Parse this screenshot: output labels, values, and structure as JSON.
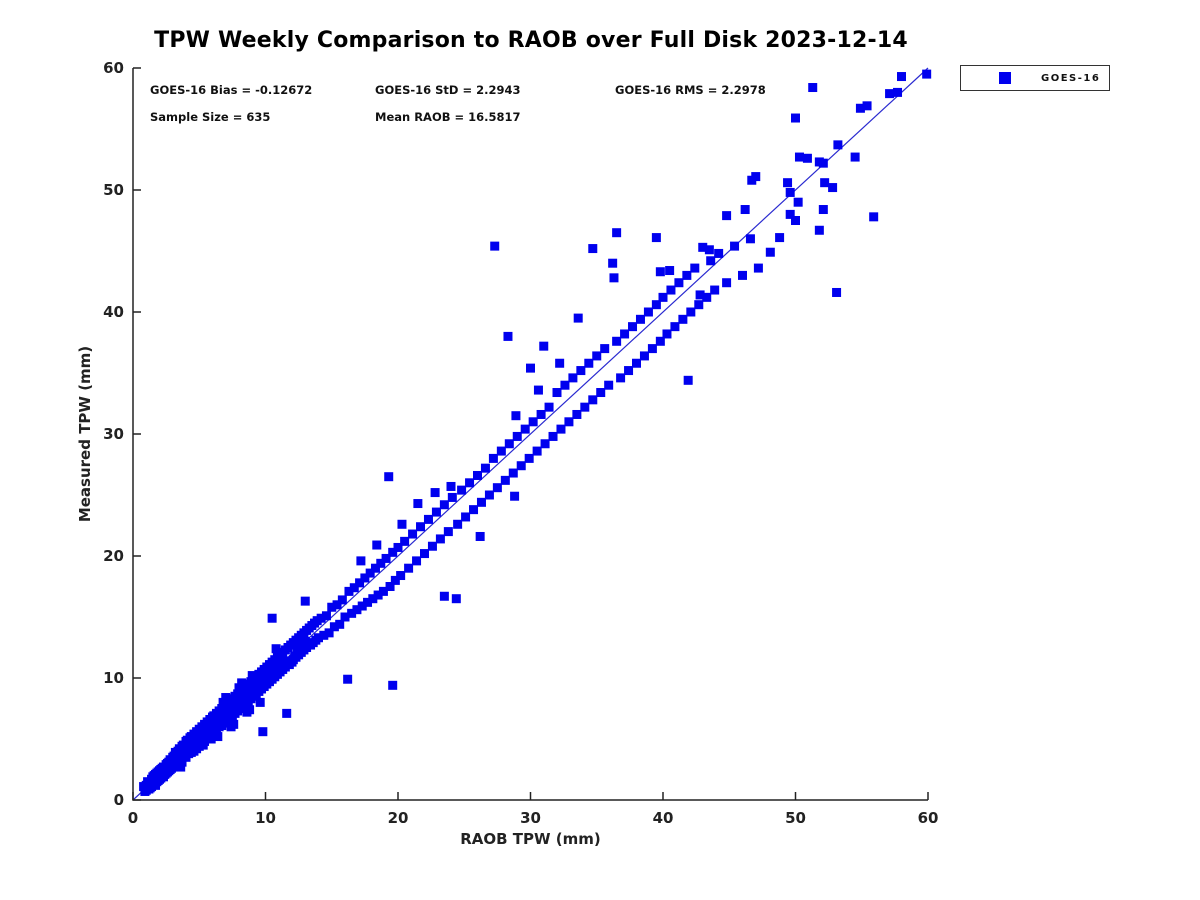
{
  "chart_data": {
    "type": "scatter",
    "title": "TPW Weekly Comparison to RAOB over Full Disk 2023-12-14",
    "xlabel": "RAOB TPW (mm)",
    "ylabel": "Measured TPW (mm)",
    "xlim": [
      0,
      60
    ],
    "ylim": [
      0,
      60
    ],
    "xticks": [
      0,
      10,
      20,
      30,
      40,
      50,
      60
    ],
    "yticks": [
      0,
      10,
      20,
      30,
      40,
      50,
      60
    ],
    "grid": false,
    "legend_position": "outside-top-right",
    "stats": {
      "bias_label": "GOES-16 Bias = -0.12672",
      "std_label": "GOES-16 StD = 2.2943",
      "rms_label": "GOES-16 RMS = 2.2978",
      "sample_label": "Sample Size = 635",
      "mean_raob_label": "Mean RAOB = 16.5817"
    },
    "legend": [
      {
        "label": "GOES-16",
        "marker_color": "#0000ee"
      }
    ],
    "marker": {
      "shape": "square",
      "size": 9,
      "color": "#0000ee"
    },
    "reference_line": {
      "x1": 0,
      "y1": 0,
      "x2": 60,
      "y2": 60,
      "color": "#2a2ad0"
    },
    "points": [
      [
        0.8,
        1.1
      ],
      [
        0.9,
        0.7
      ],
      [
        1.0,
        1.2
      ],
      [
        1.0,
        0.8
      ],
      [
        1.1,
        1.5
      ],
      [
        1.2,
        0.9
      ],
      [
        1.2,
        1.4
      ],
      [
        1.3,
        1.0
      ],
      [
        1.4,
        1.7
      ],
      [
        1.4,
        1.1
      ],
      [
        1.5,
        1.9
      ],
      [
        1.5,
        1.3
      ],
      [
        1.6,
        1.4
      ],
      [
        1.7,
        2.1
      ],
      [
        1.7,
        1.2
      ],
      [
        1.8,
        2.2
      ],
      [
        1.8,
        1.5
      ],
      [
        1.9,
        1.6
      ],
      [
        2.0,
        2.4
      ],
      [
        2.0,
        1.7
      ],
      [
        2.1,
        2.5
      ],
      [
        2.1,
        1.8
      ],
      [
        2.2,
        2.0
      ],
      [
        2.3,
        2.7
      ],
      [
        2.3,
        1.9
      ],
      [
        2.4,
        2.1
      ],
      [
        2.5,
        2.9
      ],
      [
        2.5,
        2.2
      ],
      [
        2.6,
        2.3
      ],
      [
        2.7,
        3.1
      ],
      [
        2.7,
        2.4
      ],
      [
        2.8,
        2.5
      ],
      [
        2.8,
        3.3
      ],
      [
        2.9,
        2.6
      ],
      [
        3.0,
        3.5
      ],
      [
        3.0,
        2.7
      ],
      [
        1.6,
        2.0
      ],
      [
        1.9,
        2.3
      ],
      [
        2.2,
        2.6
      ],
      [
        2.6,
        3.0
      ],
      [
        3.1,
        3.6
      ],
      [
        3.1,
        2.8
      ],
      [
        3.2,
        3.0
      ],
      [
        3.2,
        3.9
      ],
      [
        3.3,
        3.1
      ],
      [
        3.4,
        4.0
      ],
      [
        3.4,
        2.9
      ],
      [
        3.5,
        3.3
      ],
      [
        3.5,
        4.2
      ],
      [
        3.6,
        3.4
      ],
      [
        3.7,
        4.4
      ],
      [
        3.7,
        3.1
      ],
      [
        3.8,
        3.6
      ],
      [
        3.8,
        4.5
      ],
      [
        3.9,
        3.7
      ],
      [
        4.0,
        4.8
      ],
      [
        4.0,
        3.5
      ],
      [
        4.1,
        4.0
      ],
      [
        4.1,
        4.9
      ],
      [
        4.2,
        3.8
      ],
      [
        4.3,
        5.1
      ],
      [
        4.3,
        4.1
      ],
      [
        4.4,
        3.9
      ],
      [
        4.4,
        5.2
      ],
      [
        4.5,
        4.3
      ],
      [
        4.6,
        5.4
      ],
      [
        4.6,
        4.0
      ],
      [
        4.7,
        4.5
      ],
      [
        4.8,
        5.6
      ],
      [
        4.8,
        4.2
      ],
      [
        4.9,
        4.7
      ],
      [
        5.0,
        5.8
      ],
      [
        5.0,
        4.4
      ],
      [
        5.1,
        4.9
      ],
      [
        5.2,
        6.0
      ],
      [
        5.2,
        4.6
      ],
      [
        5.3,
        5.1
      ],
      [
        5.4,
        6.2
      ],
      [
        5.4,
        4.8
      ],
      [
        5.5,
        5.3
      ],
      [
        5.6,
        6.4
      ],
      [
        5.6,
        5.0
      ],
      [
        5.7,
        5.5
      ],
      [
        5.8,
        6.6
      ],
      [
        5.8,
        5.2
      ],
      [
        5.9,
        5.7
      ],
      [
        6.0,
        6.8
      ],
      [
        6.0,
        5.4
      ],
      [
        3.6,
        2.7
      ],
      [
        4.5,
        5.0
      ],
      [
        4.9,
        5.5
      ],
      [
        5.3,
        4.5
      ],
      [
        5.7,
        6.1
      ],
      [
        5.9,
        5.0
      ],
      [
        4.2,
        4.6
      ],
      [
        6.1,
        6.9
      ],
      [
        6.1,
        5.6
      ],
      [
        6.2,
        6.0
      ],
      [
        6.3,
        7.1
      ],
      [
        6.3,
        5.8
      ],
      [
        6.4,
        6.2
      ],
      [
        6.5,
        7.3
      ],
      [
        6.5,
        6.0
      ],
      [
        6.6,
        6.4
      ],
      [
        6.7,
        7.5
      ],
      [
        6.7,
        6.1
      ],
      [
        6.8,
        6.6
      ],
      [
        6.9,
        7.7
      ],
      [
        6.9,
        6.3
      ],
      [
        7.0,
        7.0
      ],
      [
        7.1,
        7.9
      ],
      [
        7.1,
        6.5
      ],
      [
        7.2,
        6.8
      ],
      [
        7.3,
        8.1
      ],
      [
        7.3,
        6.7
      ],
      [
        7.4,
        7.2
      ],
      [
        7.5,
        8.3
      ],
      [
        7.5,
        6.9
      ],
      [
        7.6,
        7.4
      ],
      [
        7.7,
        8.5
      ],
      [
        7.7,
        7.1
      ],
      [
        7.8,
        7.6
      ],
      [
        7.9,
        8.7
      ],
      [
        7.9,
        7.3
      ],
      [
        8.0,
        8.0
      ],
      [
        8.1,
        8.9
      ],
      [
        8.1,
        7.5
      ],
      [
        8.2,
        7.8
      ],
      [
        8.3,
        9.1
      ],
      [
        8.3,
        7.7
      ],
      [
        8.4,
        8.2
      ],
      [
        8.5,
        9.3
      ],
      [
        8.5,
        7.9
      ],
      [
        8.6,
        8.4
      ],
      [
        8.7,
        9.5
      ],
      [
        8.7,
        8.1
      ],
      [
        8.8,
        8.6
      ],
      [
        8.9,
        9.7
      ],
      [
        8.9,
        8.3
      ],
      [
        9.0,
        9.0
      ],
      [
        6.4,
        5.2
      ],
      [
        7.0,
        8.4
      ],
      [
        7.6,
        6.2
      ],
      [
        8.2,
        9.6
      ],
      [
        8.8,
        7.4
      ],
      [
        6.8,
        8.0
      ],
      [
        7.4,
        6.0
      ],
      [
        8.0,
        9.2
      ],
      [
        8.6,
        7.2
      ],
      [
        9.0,
        10.2
      ],
      [
        9.1,
        9.9
      ],
      [
        9.1,
        8.5
      ],
      [
        9.2,
        8.8
      ],
      [
        9.3,
        10.1
      ],
      [
        9.3,
        8.7
      ],
      [
        9.4,
        9.2
      ],
      [
        9.5,
        10.3
      ],
      [
        9.5,
        8.9
      ],
      [
        9.6,
        9.4
      ],
      [
        9.7,
        10.5
      ],
      [
        9.7,
        9.1
      ],
      [
        9.8,
        9.6
      ],
      [
        9.9,
        10.7
      ],
      [
        9.9,
        9.3
      ],
      [
        10.0,
        10.0
      ],
      [
        10.1,
        10.9
      ],
      [
        10.1,
        9.5
      ],
      [
        10.2,
        9.8
      ],
      [
        10.3,
        11.1
      ],
      [
        10.3,
        9.7
      ],
      [
        10.4,
        10.2
      ],
      [
        10.5,
        11.3
      ],
      [
        10.5,
        9.9
      ],
      [
        10.6,
        10.4
      ],
      [
        10.7,
        11.5
      ],
      [
        10.7,
        10.1
      ],
      [
        10.8,
        10.6
      ],
      [
        10.9,
        11.7
      ],
      [
        10.9,
        10.3
      ],
      [
        11.0,
        11.0
      ],
      [
        11.1,
        11.9
      ],
      [
        11.1,
        10.5
      ],
      [
        11.2,
        10.8
      ],
      [
        11.3,
        12.1
      ],
      [
        11.3,
        10.7
      ],
      [
        11.4,
        11.2
      ],
      [
        11.5,
        12.3
      ],
      [
        11.5,
        10.9
      ],
      [
        11.6,
        11.4
      ],
      [
        11.7,
        12.5
      ],
      [
        11.8,
        11.1
      ],
      [
        11.9,
        12.7
      ],
      [
        12.0,
        11.3
      ],
      [
        9.6,
        8.0
      ],
      [
        10.8,
        12.4
      ],
      [
        10.5,
        14.9
      ],
      [
        13.0,
        16.3
      ],
      [
        9.8,
        5.6
      ],
      [
        11.6,
        7.1
      ],
      [
        12.1,
        12.9
      ],
      [
        12.1,
        11.5
      ],
      [
        12.2,
        11.8
      ],
      [
        12.3,
        13.1
      ],
      [
        12.3,
        11.7
      ],
      [
        12.4,
        12.2
      ],
      [
        12.5,
        13.3
      ],
      [
        12.5,
        11.9
      ],
      [
        12.6,
        12.4
      ],
      [
        12.7,
        13.5
      ],
      [
        12.7,
        12.1
      ],
      [
        12.8,
        12.6
      ],
      [
        12.9,
        13.7
      ],
      [
        12.9,
        12.3
      ],
      [
        13.0,
        13.0
      ],
      [
        13.1,
        13.9
      ],
      [
        13.1,
        12.5
      ],
      [
        13.2,
        12.8
      ],
      [
        13.3,
        14.1
      ],
      [
        13.4,
        12.7
      ],
      [
        13.5,
        14.3
      ],
      [
        13.6,
        12.9
      ],
      [
        13.7,
        14.5
      ],
      [
        13.8,
        13.1
      ],
      [
        13.9,
        14.7
      ],
      [
        14.0,
        13.3
      ],
      [
        14.2,
        14.9
      ],
      [
        14.4,
        13.5
      ],
      [
        14.6,
        15.1
      ],
      [
        14.8,
        13.7
      ],
      [
        15.0,
        15.8
      ],
      [
        15.2,
        14.2
      ],
      [
        15.4,
        16.0
      ],
      [
        15.6,
        14.4
      ],
      [
        15.8,
        16.4
      ],
      [
        16.0,
        15.0
      ],
      [
        16.2,
        9.9
      ],
      [
        16.3,
        17.1
      ],
      [
        16.5,
        15.3
      ],
      [
        16.7,
        17.4
      ],
      [
        16.9,
        15.6
      ],
      [
        17.1,
        17.8
      ],
      [
        17.3,
        15.9
      ],
      [
        17.5,
        18.2
      ],
      [
        17.7,
        16.2
      ],
      [
        17.9,
        18.6
      ],
      [
        18.1,
        16.5
      ],
      [
        18.3,
        19.0
      ],
      [
        18.5,
        16.8
      ],
      [
        18.7,
        19.4
      ],
      [
        18.9,
        17.1
      ],
      [
        19.1,
        19.8
      ],
      [
        19.3,
        26.5
      ],
      [
        19.4,
        17.5
      ],
      [
        19.6,
        9.4
      ],
      [
        19.6,
        20.3
      ],
      [
        19.8,
        18.0
      ],
      [
        20.0,
        20.7
      ],
      [
        21.5,
        24.3
      ],
      [
        22.8,
        25.2
      ],
      [
        20.3,
        22.6
      ],
      [
        18.4,
        20.9
      ],
      [
        17.2,
        19.6
      ],
      [
        28.8,
        24.9
      ],
      [
        26.2,
        21.6
      ],
      [
        20.2,
        18.4
      ],
      [
        20.5,
        21.2
      ],
      [
        20.8,
        19.0
      ],
      [
        21.1,
        21.8
      ],
      [
        21.4,
        19.6
      ],
      [
        21.7,
        22.4
      ],
      [
        22.0,
        20.2
      ],
      [
        22.3,
        23.0
      ],
      [
        22.6,
        20.8
      ],
      [
        22.9,
        23.6
      ],
      [
        23.2,
        21.4
      ],
      [
        23.5,
        16.7
      ],
      [
        23.5,
        24.2
      ],
      [
        23.8,
        22.0
      ],
      [
        24.1,
        24.8
      ],
      [
        24.4,
        16.5
      ],
      [
        24.5,
        22.6
      ],
      [
        24.8,
        25.4
      ],
      [
        25.1,
        23.2
      ],
      [
        25.4,
        26.0
      ],
      [
        25.7,
        23.8
      ],
      [
        26.0,
        26.6
      ],
      [
        26.3,
        24.4
      ],
      [
        26.6,
        27.2
      ],
      [
        26.9,
        25.0
      ],
      [
        24.0,
        25.7
      ],
      [
        27.2,
        28.0
      ],
      [
        27.3,
        45.4
      ],
      [
        27.5,
        25.6
      ],
      [
        27.8,
        28.6
      ],
      [
        28.1,
        26.2
      ],
      [
        28.3,
        38.0
      ],
      [
        28.4,
        29.2
      ],
      [
        28.7,
        26.8
      ],
      [
        29.0,
        29.8
      ],
      [
        29.3,
        27.4
      ],
      [
        29.6,
        30.4
      ],
      [
        29.9,
        28.0
      ],
      [
        30.2,
        31.0
      ],
      [
        30.5,
        28.6
      ],
      [
        30.8,
        31.6
      ],
      [
        31.1,
        29.2
      ],
      [
        31.4,
        32.2
      ],
      [
        31.7,
        29.8
      ],
      [
        32.0,
        33.4
      ],
      [
        32.3,
        30.4
      ],
      [
        32.6,
        34.0
      ],
      [
        32.9,
        31.0
      ],
      [
        31.0,
        37.2
      ],
      [
        30.6,
        33.6
      ],
      [
        28.9,
        31.5
      ],
      [
        32.2,
        35.8
      ],
      [
        30.0,
        35.4
      ],
      [
        33.2,
        34.6
      ],
      [
        33.5,
        31.6
      ],
      [
        33.8,
        35.2
      ],
      [
        34.1,
        32.2
      ],
      [
        34.4,
        35.8
      ],
      [
        34.7,
        45.2
      ],
      [
        34.7,
        32.8
      ],
      [
        35.0,
        36.4
      ],
      [
        35.3,
        33.4
      ],
      [
        35.6,
        37.0
      ],
      [
        35.9,
        34.0
      ],
      [
        36.2,
        44.0
      ],
      [
        36.3,
        42.8
      ],
      [
        36.5,
        37.6
      ],
      [
        36.5,
        46.5
      ],
      [
        36.8,
        34.6
      ],
      [
        37.1,
        38.2
      ],
      [
        37.4,
        35.2
      ],
      [
        37.7,
        38.8
      ],
      [
        38.0,
        35.8
      ],
      [
        38.3,
        39.4
      ],
      [
        38.6,
        36.4
      ],
      [
        38.9,
        40.0
      ],
      [
        39.2,
        37.0
      ],
      [
        39.5,
        46.1
      ],
      [
        39.5,
        40.6
      ],
      [
        39.8,
        43.3
      ],
      [
        39.8,
        37.6
      ],
      [
        40.0,
        41.2
      ],
      [
        33.6,
        39.5
      ],
      [
        40.3,
        38.2
      ],
      [
        40.5,
        43.4
      ],
      [
        40.6,
        41.8
      ],
      [
        40.9,
        38.8
      ],
      [
        41.2,
        42.4
      ],
      [
        41.5,
        39.4
      ],
      [
        41.8,
        43.0
      ],
      [
        41.9,
        34.4
      ],
      [
        42.1,
        40.0
      ],
      [
        42.4,
        43.6
      ],
      [
        42.7,
        40.6
      ],
      [
        42.8,
        41.4
      ],
      [
        43.0,
        45.3
      ],
      [
        43.3,
        41.2
      ],
      [
        43.5,
        45.1
      ],
      [
        43.6,
        44.2
      ],
      [
        43.9,
        41.8
      ],
      [
        44.2,
        44.8
      ],
      [
        44.8,
        47.9
      ],
      [
        44.8,
        42.4
      ],
      [
        45.4,
        45.4
      ],
      [
        46.0,
        43.0
      ],
      [
        46.2,
        48.4
      ],
      [
        46.6,
        46.0
      ],
      [
        47.0,
        51.1
      ],
      [
        46.7,
        50.8
      ],
      [
        47.2,
        43.6
      ],
      [
        48.1,
        44.9
      ],
      [
        48.8,
        46.1
      ],
      [
        49.4,
        50.6
      ],
      [
        49.6,
        49.8
      ],
      [
        49.6,
        48.0
      ],
      [
        50.0,
        55.9
      ],
      [
        50.0,
        47.5
      ],
      [
        50.2,
        49.0
      ],
      [
        50.3,
        52.7
      ],
      [
        50.9,
        52.6
      ],
      [
        51.3,
        58.4
      ],
      [
        51.8,
        52.3
      ],
      [
        51.8,
        46.7
      ],
      [
        52.1,
        52.2
      ],
      [
        52.1,
        48.4
      ],
      [
        52.2,
        50.6
      ],
      [
        52.8,
        50.2
      ],
      [
        53.1,
        41.6
      ],
      [
        53.2,
        53.7
      ],
      [
        54.5,
        52.7
      ],
      [
        54.9,
        56.7
      ],
      [
        55.4,
        56.9
      ],
      [
        55.9,
        47.8
      ],
      [
        57.1,
        57.9
      ],
      [
        57.7,
        58.0
      ],
      [
        58.0,
        59.3
      ],
      [
        59.9,
        59.5
      ]
    ]
  }
}
